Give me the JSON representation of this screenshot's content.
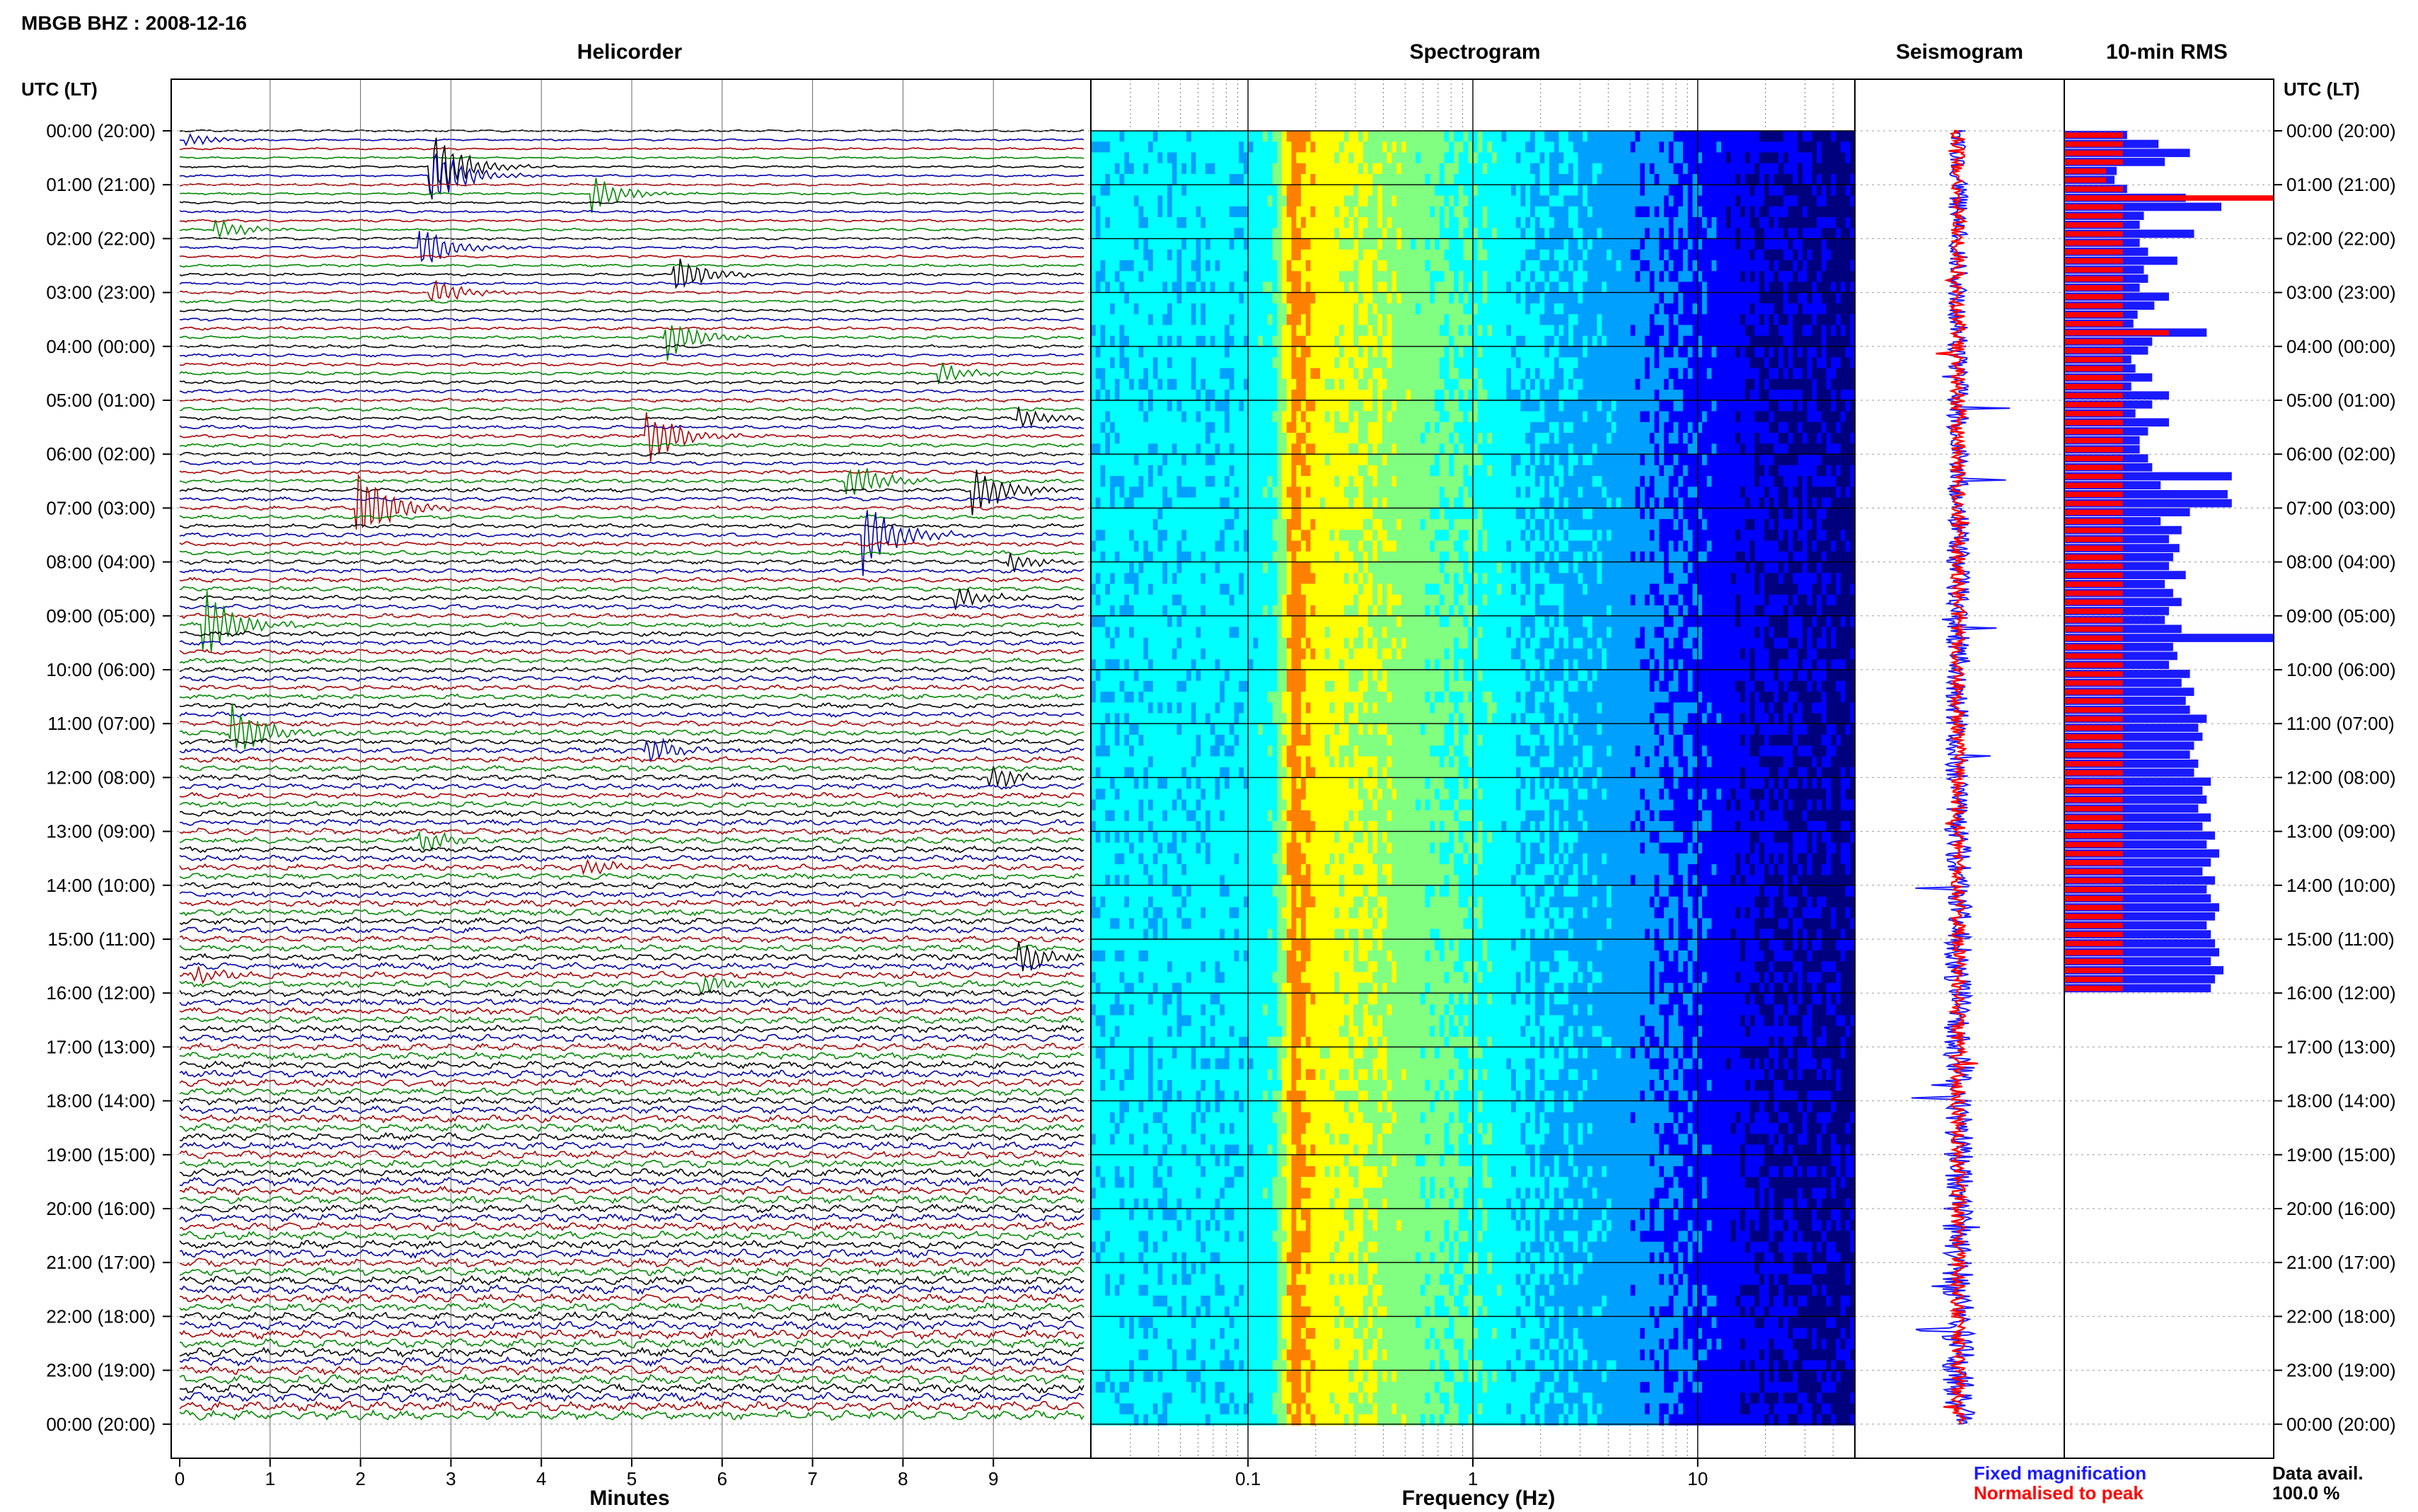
{
  "header": {
    "title": "MBGB BHZ : 2008-12-16"
  },
  "panels": {
    "helicorder": "Helicorder",
    "spectrogram": "Spectrogram",
    "seismogram": "Seismogram",
    "rms": "10-min RMS"
  },
  "axes": {
    "utc_label_left": "UTC (LT)",
    "utc_label_right": "UTC (LT)",
    "minutes_label": "Minutes",
    "frequency_label": "Frequency (Hz)"
  },
  "legend": {
    "fixed": "Fixed magnification",
    "normalised": "Normalised to peak",
    "fixed_color": "#1a1aff",
    "normalised_color": "#ff0000"
  },
  "availability": {
    "label": "Data avail.",
    "value": "100.0 %"
  },
  "colors": {
    "trace_cycle": [
      "#000000",
      "#0000aa",
      "#aa0000",
      "#008800"
    ]
  },
  "chart_data": [
    {
      "type": "line",
      "panel": "Helicorder",
      "xlabel": "Minutes",
      "ylabel": "UTC (LT)",
      "xlim": [
        0,
        10
      ],
      "x_ticks": [
        "0",
        "1",
        "2",
        "3",
        "4",
        "5",
        "6",
        "7",
        "8",
        "9"
      ],
      "y_ticks": [
        "00:00 (20:00)",
        "01:00 (21:00)",
        "02:00 (22:00)",
        "03:00 (23:00)",
        "04:00 (00:00)",
        "05:00 (01:00)",
        "06:00 (02:00)",
        "07:00 (03:00)",
        "08:00 (04:00)",
        "09:00 (05:00)",
        "10:00 (06:00)",
        "11:00 (07:00)",
        "12:00 (08:00)",
        "13:00 (09:00)",
        "14:00 (10:00)",
        "15:00 (11:00)",
        "16:00 (12:00)",
        "17:00 (13:00)",
        "18:00 (14:00)",
        "19:00 (15:00)",
        "20:00 (16:00)",
        "21:00 (17:00)",
        "22:00 (18:00)",
        "23:00 (19:00)",
        "00:00 (20:00)"
      ],
      "lines_per_hour": 6,
      "events": [
        {
          "row": 1,
          "minute": 0.1,
          "amp": 0.4
        },
        {
          "row": 4,
          "minute": 2.8,
          "amp": 2.2
        },
        {
          "row": 5,
          "minute": 2.8,
          "amp": 1.8
        },
        {
          "row": 7,
          "minute": 4.6,
          "amp": 1.0
        },
        {
          "row": 11,
          "minute": 0.4,
          "amp": 0.6
        },
        {
          "row": 13,
          "minute": 2.7,
          "amp": 1.2
        },
        {
          "row": 16,
          "minute": 5.5,
          "amp": 1.2
        },
        {
          "row": 18,
          "minute": 2.8,
          "amp": 0.8
        },
        {
          "row": 23,
          "minute": 5.4,
          "amp": 1.2
        },
        {
          "row": 27,
          "minute": 8.4,
          "amp": 0.6
        },
        {
          "row": 32,
          "minute": 9.3,
          "amp": 0.6
        },
        {
          "row": 34,
          "minute": 5.2,
          "amp": 1.6
        },
        {
          "row": 39,
          "minute": 7.4,
          "amp": 1.2
        },
        {
          "row": 40,
          "minute": 8.8,
          "amp": 1.4
        },
        {
          "row": 42,
          "minute": 2.0,
          "amp": 2.4
        },
        {
          "row": 45,
          "minute": 7.6,
          "amp": 2.2
        },
        {
          "row": 48,
          "minute": 9.2,
          "amp": 0.5
        },
        {
          "row": 52,
          "minute": 8.6,
          "amp": 0.6
        },
        {
          "row": 55,
          "minute": 0.3,
          "amp": 2.0
        },
        {
          "row": 67,
          "minute": 0.6,
          "amp": 1.6
        },
        {
          "row": 69,
          "minute": 5.2,
          "amp": 0.8
        },
        {
          "row": 72,
          "minute": 9.0,
          "amp": 0.7
        },
        {
          "row": 79,
          "minute": 2.7,
          "amp": 0.6
        },
        {
          "row": 82,
          "minute": 4.5,
          "amp": 0.5
        },
        {
          "row": 92,
          "minute": 9.3,
          "amp": 1.0
        },
        {
          "row": 94,
          "minute": 0.2,
          "amp": 0.6
        },
        {
          "row": 95,
          "minute": 5.8,
          "amp": 0.6
        }
      ]
    },
    {
      "type": "heatmap",
      "panel": "Spectrogram",
      "xlabel": "Frequency (Hz)",
      "x_scale": "log",
      "xlim": [
        0.02,
        50
      ],
      "x_ticks": [
        "0.1",
        "1",
        "10"
      ],
      "colormap": [
        "#00007f",
        "#0000ff",
        "#00a0ff",
        "#00ffff",
        "#80ff80",
        "#ffff00",
        "#ff8000",
        "#ff0000"
      ],
      "band_profile": [
        {
          "f": 0.02,
          "level": 0.4
        },
        {
          "f": 0.09,
          "level": 0.4
        },
        {
          "f": 0.13,
          "level": 0.45
        },
        {
          "f": 0.16,
          "level": 0.85
        },
        {
          "f": 0.2,
          "level": 0.72
        },
        {
          "f": 0.5,
          "level": 0.58
        },
        {
          "f": 1,
          "level": 0.48
        },
        {
          "f": 2,
          "level": 0.36
        },
        {
          "f": 5,
          "level": 0.28
        },
        {
          "f": 10,
          "level": 0.18
        },
        {
          "f": 20,
          "level": 0.08
        },
        {
          "f": 50,
          "level": 0.04
        }
      ]
    },
    {
      "type": "line",
      "panel": "Seismogram",
      "series": [
        {
          "name": "Fixed magnification",
          "color": "#1a1aff"
        },
        {
          "name": "Normalised to peak",
          "color": "#ff0000"
        }
      ]
    },
    {
      "type": "bar",
      "panel": "10-min RMS",
      "orientation": "horizontal",
      "series": [
        {
          "name": "Fixed magnification",
          "color": "#1a1aff",
          "values": [
            0.3,
            0.45,
            0.6,
            0.48,
            0.25,
            0.24,
            0.3,
            0.58,
            0.75,
            0.38,
            0.36,
            0.62,
            0.36,
            0.4,
            0.54,
            0.38,
            0.4,
            0.36,
            0.5,
            0.43,
            0.35,
            0.33,
            0.68,
            0.42,
            0.4,
            0.32,
            0.34,
            0.42,
            0.32,
            0.5,
            0.42,
            0.34,
            0.5,
            0.4,
            0.36,
            0.36,
            0.4,
            0.42,
            0.8,
            0.46,
            0.78,
            0.8,
            0.6,
            0.46,
            0.56,
            0.5,
            0.55,
            0.52,
            0.5,
            0.58,
            0.48,
            0.52,
            0.56,
            0.5,
            0.48,
            0.56,
            1.0,
            0.52,
            0.54,
            0.5,
            0.6,
            0.56,
            0.62,
            0.58,
            0.6,
            0.68,
            0.64,
            0.66,
            0.62,
            0.6,
            0.64,
            0.62,
            0.7,
            0.66,
            0.68,
            0.64,
            0.7,
            0.66,
            0.72,
            0.68,
            0.74,
            0.7,
            0.66,
            0.72,
            0.68,
            0.7,
            0.74,
            0.72,
            0.68,
            0.7,
            0.72,
            0.74,
            0.7,
            0.76,
            0.72,
            0.7
          ]
        },
        {
          "name": "Normalised to peak",
          "color": "#ff0000",
          "values": [
            0.28,
            0.28,
            0.28,
            0.28,
            0.2,
            0.2,
            0.28,
            1.0,
            0.28,
            0.28,
            0.28,
            0.28,
            0.28,
            0.28,
            0.28,
            0.28,
            0.28,
            0.28,
            0.28,
            0.28,
            0.28,
            0.28,
            0.5,
            0.28,
            0.28,
            0.28,
            0.28,
            0.28,
            0.28,
            0.28,
            0.28,
            0.28,
            0.28,
            0.28,
            0.28,
            0.28,
            0.28,
            0.28,
            0.28,
            0.28,
            0.28,
            0.28,
            0.28,
            0.28,
            0.28,
            0.28,
            0.28,
            0.28,
            0.28,
            0.28,
            0.28,
            0.28,
            0.28,
            0.28,
            0.28,
            0.28,
            0.28,
            0.28,
            0.28,
            0.28,
            0.28,
            0.28,
            0.28,
            0.28,
            0.28,
            0.28,
            0.28,
            0.28,
            0.28,
            0.28,
            0.28,
            0.28,
            0.28,
            0.28,
            0.28,
            0.28,
            0.28,
            0.28,
            0.28,
            0.28,
            0.28,
            0.28,
            0.28,
            0.28,
            0.28,
            0.28,
            0.28,
            0.28,
            0.28,
            0.28,
            0.28,
            0.28,
            0.28,
            0.28,
            0.28,
            0.28
          ]
        }
      ]
    }
  ]
}
